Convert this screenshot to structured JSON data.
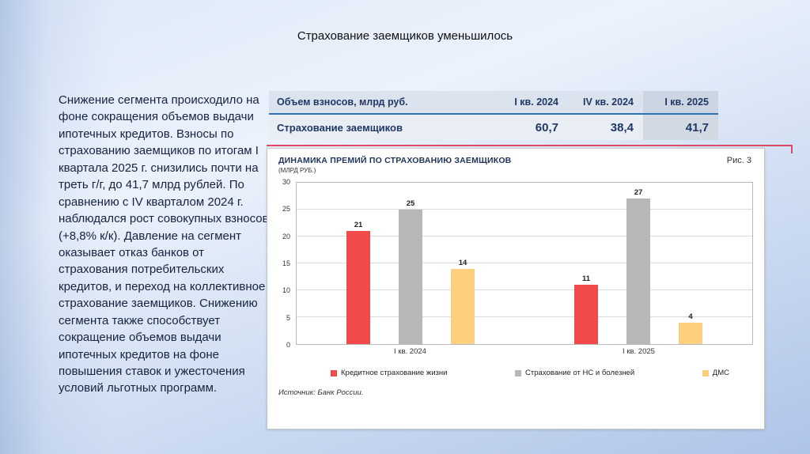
{
  "slide": {
    "title": "Страхование заемщиков уменьшилось",
    "body_text": "Снижение сегмента происходило на фоне сокращения объемов выдачи ипотечных кредитов. Взносы по страхованию заемщиков по итогам I квартала 2025 г. снизились почти на треть г/г, до 41,7 млрд рублей. По сравнению с IV кварталом 2024 г. наблюдался рост совокупных взносов (+8,8% к/к). Давление на сегмент оказывает отказ банков от страхования потребительских кредитов, и переход на коллективное страхование заемщиков. Снижению сегмента также способствует сокращение объемов выдачи ипотечных кредитов на фоне повышения ставок и ужесточения условий льготных программ."
  },
  "table": {
    "header": {
      "metric": "Объем взносов, млрд руб.",
      "cols": [
        "I кв. 2024",
        "IV кв. 2024",
        "I кв. 2025"
      ]
    },
    "row": {
      "label": "Страхование заемщиков",
      "values": [
        "60,7",
        "38,4",
        "41,7"
      ]
    }
  },
  "chart": {
    "title": "ДИНАМИКА ПРЕМИЙ ПО СТРАХОВАНИЮ ЗАЕМЩИКОВ",
    "subtitle": "(МЛРД РУБ.)",
    "figure_label": "Рис. 3",
    "source": "Источник: Банк России."
  },
  "chart_data": {
    "type": "bar",
    "categories": [
      "I кв. 2024",
      "I кв. 2025"
    ],
    "series": [
      {
        "name": "Кредитное страхование жизни",
        "color": "#f04a4b",
        "values": [
          21,
          11
        ]
      },
      {
        "name": "Страхование от НС и болезней",
        "color": "#b7b7b7",
        "values": [
          25,
          27
        ]
      },
      {
        "name": "ДМС",
        "color": "#fcd07e",
        "values": [
          14,
          4
        ]
      }
    ],
    "title": "ДИНАМИКА ПРЕМИЙ ПО СТРАХОВАНИЮ ЗАЕМЩИКОВ (МЛРД РУБ.)",
    "xlabel": "",
    "ylabel": "",
    "ylim": [
      0,
      30
    ],
    "yticks": [
      0,
      5,
      10,
      15,
      20,
      25,
      30
    ],
    "grid": true,
    "legend_position": "bottom"
  }
}
